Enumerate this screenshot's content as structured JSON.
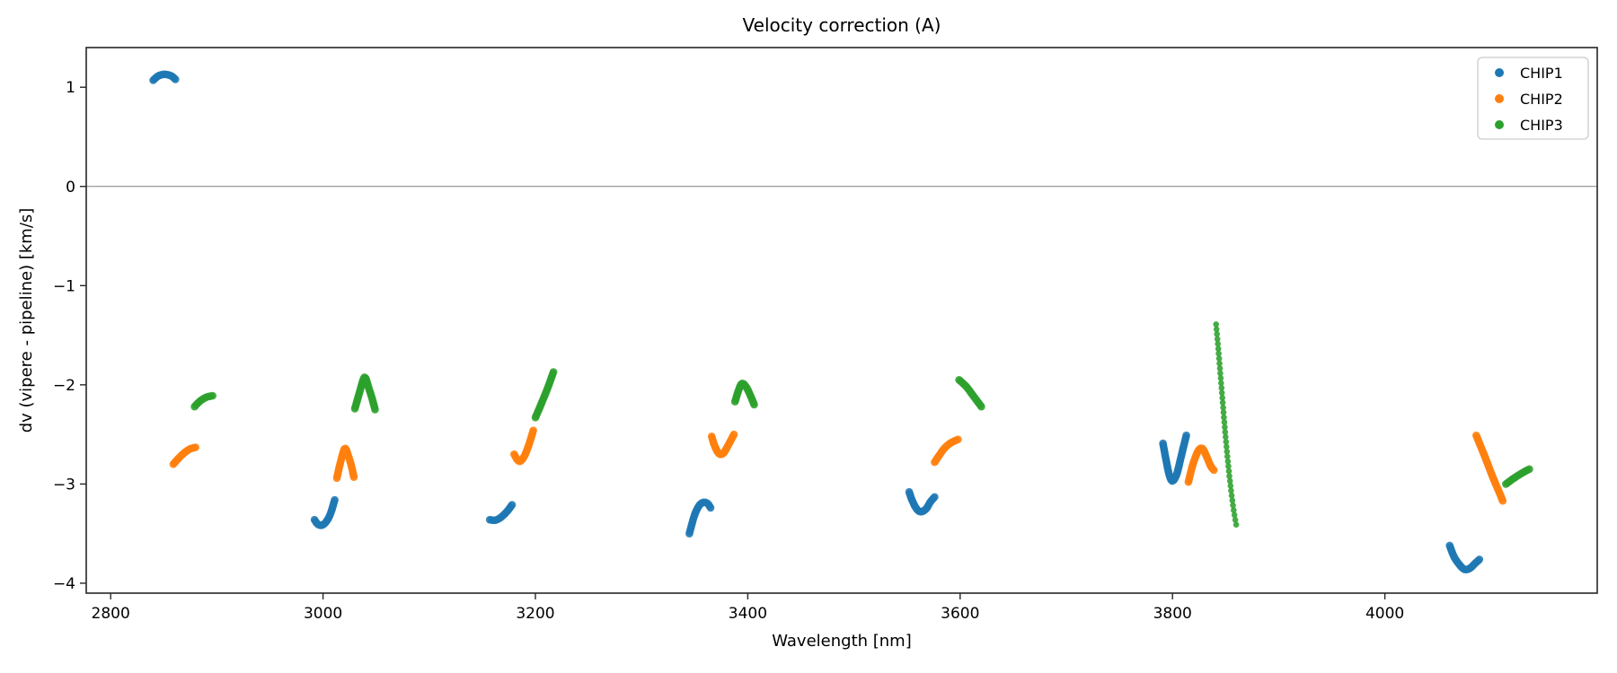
{
  "chart_data": {
    "type": "scatter",
    "title": "Velocity correction (A)",
    "xlabel": "Wavelength [nm]",
    "ylabel": "dv (vipere - pipeline) [km/s]",
    "xlim": [
      2777,
      4200
    ],
    "ylim": [
      -4.1,
      1.4
    ],
    "x_ticks": [
      2800,
      3000,
      3200,
      3400,
      3600,
      3800,
      4000
    ],
    "y_ticks": [
      1,
      0,
      -1,
      -2,
      -3,
      -4
    ],
    "zero_line_y": 0,
    "grid": false,
    "legend_position": "upper right",
    "axis_color": "#262626",
    "zero_line_color": "#808080",
    "legend_border_color": "#cccccc",
    "series": [
      {
        "name": "CHIP1",
        "color": "#1f77b4",
        "segments": [
          {
            "n": 16,
            "points": [
              [
                2840,
                1.07
              ],
              [
                2845,
                1.115
              ],
              [
                2851,
                1.13
              ],
              [
                2857,
                1.115
              ],
              [
                2861,
                1.08
              ]
            ]
          },
          {
            "n": 22,
            "points": [
              [
                2992,
                -3.36
              ],
              [
                2995,
                -3.405
              ],
              [
                2999,
                -3.415
              ],
              [
                3003,
                -3.38
              ],
              [
                3007,
                -3.3
              ],
              [
                3011,
                -3.16
              ]
            ]
          },
          {
            "n": 16,
            "points": [
              [
                3157,
                -3.36
              ],
              [
                3162,
                -3.365
              ],
              [
                3167,
                -3.34
              ],
              [
                3173,
                -3.28
              ],
              [
                3178,
                -3.21
              ]
            ]
          },
          {
            "n": 24,
            "points": [
              [
                3345,
                -3.5
              ],
              [
                3347,
                -3.42
              ],
              [
                3350,
                -3.31
              ],
              [
                3354,
                -3.22
              ],
              [
                3358,
                -3.185
              ],
              [
                3362,
                -3.195
              ],
              [
                3365,
                -3.24
              ]
            ]
          },
          {
            "n": 25,
            "points": [
              [
                3552,
                -3.08
              ],
              [
                3555,
                -3.17
              ],
              [
                3559,
                -3.25
              ],
              [
                3563,
                -3.28
              ],
              [
                3568,
                -3.25
              ],
              [
                3572,
                -3.18
              ],
              [
                3576,
                -3.13
              ]
            ]
          },
          {
            "n": 48,
            "points": [
              [
                3791,
                -2.59
              ],
              [
                3794,
                -2.76
              ],
              [
                3797,
                -2.91
              ],
              [
                3800,
                -2.97
              ],
              [
                3804,
                -2.9
              ],
              [
                3808,
                -2.73
              ],
              [
                3813,
                -2.51
              ]
            ]
          },
          {
            "n": 26,
            "points": [
              [
                4061,
                -3.62
              ],
              [
                4065,
                -3.73
              ],
              [
                4070,
                -3.81
              ],
              [
                4075,
                -3.86
              ],
              [
                4080,
                -3.85
              ],
              [
                4085,
                -3.8
              ],
              [
                4089,
                -3.76
              ]
            ]
          }
        ]
      },
      {
        "name": "CHIP2",
        "color": "#ff7f0e",
        "segments": [
          {
            "n": 17,
            "points": [
              [
                2859,
                -2.8
              ],
              [
                2864,
                -2.74
              ],
              [
                2870,
                -2.68
              ],
              [
                2875,
                -2.645
              ],
              [
                2880,
                -2.63
              ]
            ]
          },
          {
            "n": 34,
            "points": [
              [
                3013,
                -2.94
              ],
              [
                3016,
                -2.8
              ],
              [
                3019,
                -2.68
              ],
              [
                3021,
                -2.64
              ],
              [
                3024,
                -2.72
              ],
              [
                3027,
                -2.83
              ],
              [
                3029,
                -2.93
              ]
            ]
          },
          {
            "n": 25,
            "points": [
              [
                3180,
                -2.7
              ],
              [
                3183,
                -2.755
              ],
              [
                3186,
                -2.77
              ],
              [
                3190,
                -2.71
              ],
              [
                3194,
                -2.6
              ],
              [
                3198,
                -2.46
              ]
            ]
          },
          {
            "n": 26,
            "points": [
              [
                3366,
                -2.52
              ],
              [
                3369,
                -2.62
              ],
              [
                3373,
                -2.695
              ],
              [
                3377,
                -2.69
              ],
              [
                3381,
                -2.62
              ],
              [
                3387,
                -2.5
              ]
            ]
          },
          {
            "n": 19,
            "points": [
              [
                3576,
                -2.78
              ],
              [
                3581,
                -2.7
              ],
              [
                3586,
                -2.63
              ],
              [
                3592,
                -2.58
              ],
              [
                3598,
                -2.55
              ]
            ]
          },
          {
            "n": 34,
            "points": [
              [
                3815,
                -2.98
              ],
              [
                3819,
                -2.81
              ],
              [
                3824,
                -2.67
              ],
              [
                3828,
                -2.64
              ],
              [
                3832,
                -2.72
              ],
              [
                3836,
                -2.82
              ],
              [
                3839,
                -2.86
              ]
            ]
          },
          {
            "n": 38,
            "points": [
              [
                4086,
                -2.51
              ],
              [
                4094,
                -2.72
              ],
              [
                4102,
                -2.94
              ],
              [
                4108,
                -3.09
              ],
              [
                4111,
                -3.17
              ]
            ]
          }
        ]
      },
      {
        "name": "CHIP3",
        "color": "#2ca02c",
        "segments": [
          {
            "n": 12,
            "points": [
              [
                2879,
                -2.22
              ],
              [
                2884,
                -2.165
              ],
              [
                2890,
                -2.125
              ],
              [
                2896,
                -2.11
              ]
            ]
          },
          {
            "n": 38,
            "points": [
              [
                3030,
                -2.24
              ],
              [
                3034,
                -2.09
              ],
              [
                3038,
                -1.945
              ],
              [
                3040,
                -1.93
              ],
              [
                3043,
                -2.03
              ],
              [
                3046,
                -2.13
              ],
              [
                3049,
                -2.25
              ]
            ]
          },
          {
            "n": 27,
            "points": [
              [
                3200,
                -2.33
              ],
              [
                3206,
                -2.18
              ],
              [
                3212,
                -2.02
              ],
              [
                3217,
                -1.87
              ]
            ]
          },
          {
            "n": 26,
            "points": [
              [
                3388,
                -2.17
              ],
              [
                3392,
                -2.035
              ],
              [
                3395,
                -1.985
              ],
              [
                3399,
                -2.03
              ],
              [
                3403,
                -2.12
              ],
              [
                3406,
                -2.2
              ]
            ]
          },
          {
            "n": 20,
            "points": [
              [
                3599,
                -1.95
              ],
              [
                3606,
                -2.02
              ],
              [
                3613,
                -2.12
              ],
              [
                3620,
                -2.22
              ]
            ]
          },
          {
            "n": 42,
            "r": 3.3,
            "points": [
              [
                3841,
                -1.39
              ],
              [
                3843,
                -1.62
              ],
              [
                3845,
                -1.88
              ],
              [
                3847,
                -2.14
              ],
              [
                3849,
                -2.4
              ],
              [
                3851,
                -2.64
              ],
              [
                3853,
                -2.86
              ],
              [
                3855,
                -3.05
              ],
              [
                3857,
                -3.22
              ],
              [
                3859,
                -3.35
              ],
              [
                3860,
                -3.41
              ]
            ]
          },
          {
            "n": 15,
            "points": [
              [
                4114,
                -3.0
              ],
              [
                4121,
                -2.945
              ],
              [
                4129,
                -2.89
              ],
              [
                4136,
                -2.85
              ]
            ]
          }
        ]
      }
    ]
  }
}
